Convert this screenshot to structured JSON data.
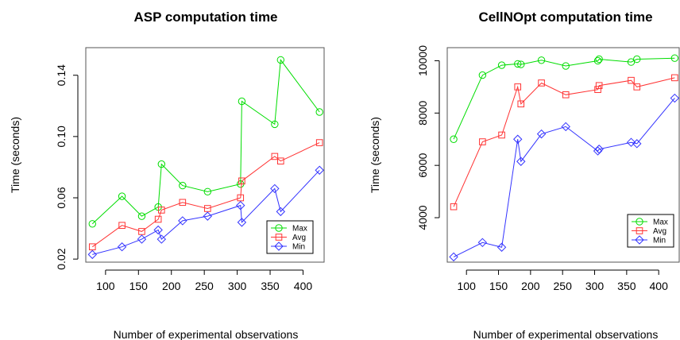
{
  "colors": {
    "max": "#00dd00",
    "avg": "#ff3333",
    "min": "#3333ff",
    "frame": "#555555"
  },
  "chart_data": [
    {
      "type": "line",
      "title": "ASP computation time",
      "xlabel": "Number of experimental observations",
      "ylabel": "Time (seconds)",
      "xlim": [
        70,
        432
      ],
      "ylim": [
        0.018,
        0.158
      ],
      "xticks": [
        100,
        150,
        200,
        250,
        300,
        350,
        400
      ],
      "yticks": [
        0.02,
        0.06,
        0.1,
        0.14
      ],
      "ytick_labels": [
        "0.02",
        "0.06",
        "0.10",
        "0.14"
      ],
      "legend_position": "bottom-right",
      "series": [
        {
          "name": "Max",
          "color": "#00dd00",
          "marker": "circle",
          "x": [
            80,
            125,
            155,
            180,
            185,
            217,
            255,
            305,
            307,
            357,
            366,
            425
          ],
          "y": [
            0.043,
            0.061,
            0.048,
            0.054,
            0.082,
            0.068,
            0.064,
            0.069,
            0.123,
            0.108,
            0.15,
            0.116
          ]
        },
        {
          "name": "Avg",
          "color": "#ff3333",
          "marker": "square",
          "x": [
            80,
            125,
            155,
            180,
            185,
            217,
            255,
            305,
            307,
            357,
            366,
            425
          ],
          "y": [
            0.028,
            0.042,
            0.038,
            0.046,
            0.052,
            0.057,
            0.053,
            0.06,
            0.071,
            0.087,
            0.084,
            0.096
          ]
        },
        {
          "name": "Min",
          "color": "#3333ff",
          "marker": "diamond",
          "x": [
            80,
            125,
            155,
            180,
            185,
            217,
            255,
            305,
            307,
            357,
            366,
            425
          ],
          "y": [
            0.023,
            0.028,
            0.033,
            0.039,
            0.033,
            0.045,
            0.048,
            0.055,
            0.044,
            0.066,
            0.051,
            0.078
          ]
        }
      ]
    },
    {
      "type": "line",
      "title": "CellNOpt computation time",
      "xlabel": "Number of experimental observations",
      "ylabel": "Time (seconds)",
      "xlim": [
        70,
        432
      ],
      "ylim": [
        2300,
        10500
      ],
      "xticks": [
        100,
        150,
        200,
        250,
        300,
        350,
        400
      ],
      "yticks": [
        4000,
        6000,
        8000,
        10000
      ],
      "ytick_labels": [
        "4000",
        "6000",
        "8000",
        "10000"
      ],
      "legend_position": "bottom-right",
      "series": [
        {
          "name": "Max",
          "color": "#00dd00",
          "marker": "circle",
          "x": [
            80,
            125,
            155,
            180,
            185,
            217,
            255,
            305,
            307,
            357,
            366,
            425
          ],
          "y": [
            7000,
            9450,
            9830,
            9880,
            9860,
            10020,
            9800,
            10000,
            10060,
            9950,
            10060,
            10100
          ]
        },
        {
          "name": "Avg",
          "color": "#ff3333",
          "marker": "square",
          "x": [
            80,
            125,
            155,
            180,
            185,
            217,
            255,
            305,
            307,
            357,
            366,
            425
          ],
          "y": [
            4420,
            6900,
            7160,
            9000,
            8350,
            9150,
            8700,
            8900,
            9050,
            9250,
            9000,
            9350
          ]
        },
        {
          "name": "Min",
          "color": "#3333ff",
          "marker": "diamond",
          "x": [
            80,
            125,
            155,
            180,
            185,
            217,
            255,
            305,
            307,
            357,
            366,
            425
          ],
          "y": [
            2500,
            3050,
            2870,
            7000,
            6150,
            7200,
            7480,
            6550,
            6620,
            6880,
            6830,
            8570
          ]
        }
      ]
    }
  ]
}
